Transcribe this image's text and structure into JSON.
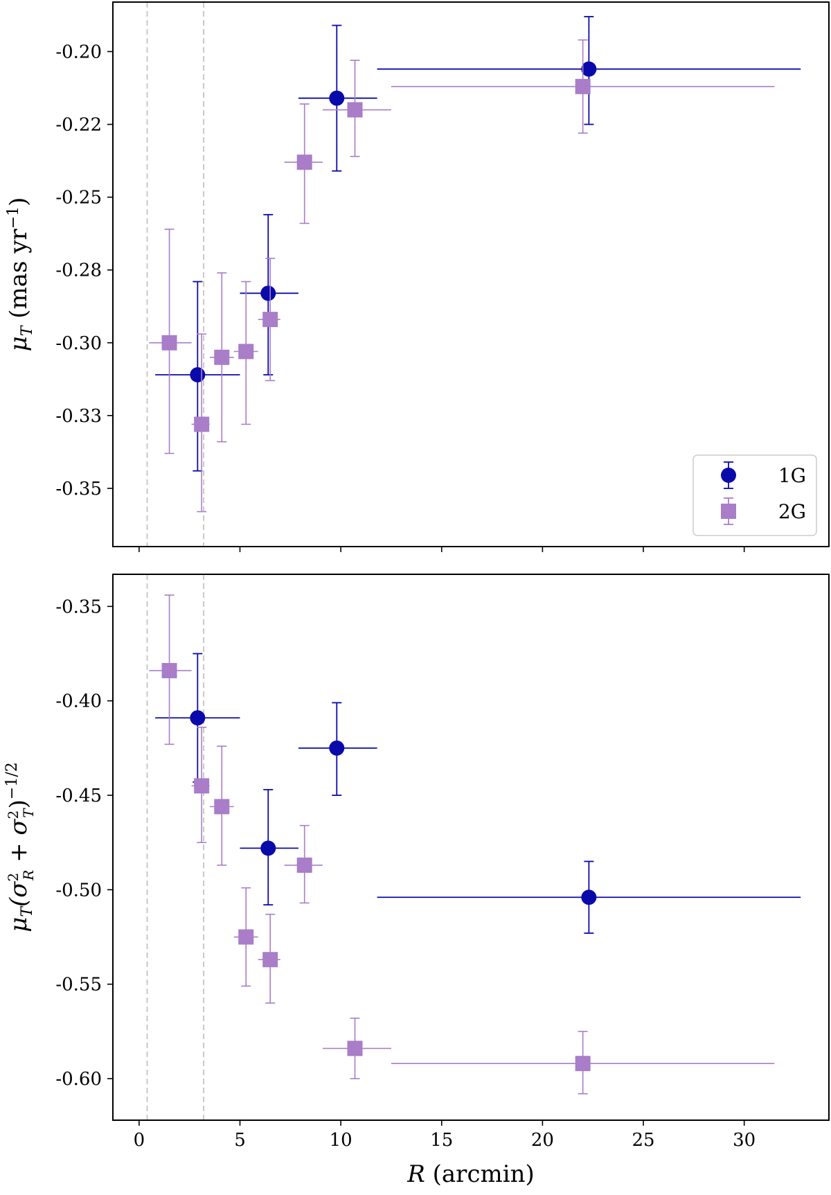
{
  "chart_data": [
    {
      "type": "scatter",
      "panel": "top",
      "ylabel": "μ_T (mas yr^-1)",
      "xlim": [
        -1.3,
        34.2
      ],
      "ylim": [
        -0.37,
        -0.183
      ],
      "yticks": [
        -0.35,
        -0.325,
        -0.3,
        -0.275,
        -0.25,
        -0.225,
        -0.2
      ],
      "ytick_labels": [
        "-0.35",
        "-0.33",
        "-0.30",
        "-0.28",
        "-0.25",
        "-0.22",
        "-0.20"
      ],
      "xticks": [
        0,
        5,
        10,
        15,
        20,
        25,
        30
      ],
      "show_xtick_labels": false,
      "vlines": [
        0.4,
        3.2
      ],
      "legend": {
        "position": "lower-right",
        "entries": [
          "1G",
          "2G"
        ]
      },
      "series": [
        {
          "name": "1G",
          "color": "#0a0aaa",
          "marker": "circle",
          "points": [
            {
              "x": 2.9,
              "y": -0.311,
              "xlo": 0.8,
              "xhi": 5.0,
              "ylo": -0.344,
              "yhi": -0.279
            },
            {
              "x": 6.4,
              "y": -0.283,
              "xlo": 5.0,
              "xhi": 7.9,
              "ylo": -0.311,
              "yhi": -0.256
            },
            {
              "x": 9.8,
              "y": -0.216,
              "xlo": 7.9,
              "xhi": 11.8,
              "ylo": -0.241,
              "yhi": -0.191
            },
            {
              "x": 22.3,
              "y": -0.206,
              "xlo": 11.8,
              "xhi": 32.8,
              "ylo": -0.225,
              "yhi": -0.188
            }
          ]
        },
        {
          "name": "2G",
          "color": "#a97dc8",
          "marker": "square",
          "points": [
            {
              "x": 1.5,
              "y": -0.3,
              "xlo": 0.5,
              "xhi": 2.6,
              "ylo": -0.338,
              "yhi": -0.261
            },
            {
              "x": 3.1,
              "y": -0.328,
              "xlo": 2.6,
              "xhi": 3.5,
              "ylo": -0.358,
              "yhi": -0.297
            },
            {
              "x": 4.1,
              "y": -0.305,
              "xlo": 3.5,
              "xhi": 4.7,
              "ylo": -0.334,
              "yhi": -0.276
            },
            {
              "x": 5.3,
              "y": -0.303,
              "xlo": 4.7,
              "xhi": 5.9,
              "ylo": -0.328,
              "yhi": -0.279
            },
            {
              "x": 6.5,
              "y": -0.292,
              "xlo": 5.9,
              "xhi": 7.0,
              "ylo": -0.313,
              "yhi": -0.271
            },
            {
              "x": 8.2,
              "y": -0.238,
              "xlo": 7.2,
              "xhi": 9.1,
              "ylo": -0.259,
              "yhi": -0.218
            },
            {
              "x": 10.7,
              "y": -0.22,
              "xlo": 9.1,
              "xhi": 12.5,
              "ylo": -0.236,
              "yhi": -0.203
            },
            {
              "x": 22.0,
              "y": -0.212,
              "xlo": 12.5,
              "xhi": 31.5,
              "ylo": -0.228,
              "yhi": -0.196
            }
          ]
        }
      ]
    },
    {
      "type": "scatter",
      "panel": "bottom",
      "ylabel": "μ_T(σ_R^2 + σ_T^2)^-1/2",
      "xlabel": "R (arcmin)",
      "xlim": [
        -1.3,
        34.2
      ],
      "ylim": [
        -0.622,
        -0.333
      ],
      "yticks": [
        -0.6,
        -0.55,
        -0.5,
        -0.45,
        -0.4,
        -0.35
      ],
      "ytick_labels": [
        "-0.60",
        "-0.55",
        "-0.50",
        "-0.45",
        "-0.40",
        "-0.35"
      ],
      "xticks": [
        0,
        5,
        10,
        15,
        20,
        25,
        30
      ],
      "xtick_labels": [
        "0",
        "5",
        "10",
        "15",
        "20",
        "25",
        "30"
      ],
      "show_xtick_labels": true,
      "vlines": [
        0.4,
        3.2
      ],
      "series": [
        {
          "name": "1G",
          "color": "#0a0aaa",
          "marker": "circle",
          "points": [
            {
              "x": 2.9,
              "y": -0.409,
              "xlo": 0.8,
              "xhi": 5.0,
              "ylo": -0.443,
              "yhi": -0.375
            },
            {
              "x": 6.4,
              "y": -0.478,
              "xlo": 5.0,
              "xhi": 7.9,
              "ylo": -0.508,
              "yhi": -0.447
            },
            {
              "x": 9.8,
              "y": -0.425,
              "xlo": 7.9,
              "xhi": 11.8,
              "ylo": -0.45,
              "yhi": -0.401
            },
            {
              "x": 22.3,
              "y": -0.504,
              "xlo": 11.8,
              "xhi": 32.8,
              "ylo": -0.523,
              "yhi": -0.485
            }
          ]
        },
        {
          "name": "2G",
          "color": "#a97dc8",
          "marker": "square",
          "points": [
            {
              "x": 1.5,
              "y": -0.384,
              "xlo": 0.5,
              "xhi": 2.6,
              "ylo": -0.423,
              "yhi": -0.344
            },
            {
              "x": 3.1,
              "y": -0.445,
              "xlo": 2.6,
              "xhi": 3.5,
              "ylo": -0.475,
              "yhi": -0.414
            },
            {
              "x": 4.1,
              "y": -0.456,
              "xlo": 3.5,
              "xhi": 4.7,
              "ylo": -0.487,
              "yhi": -0.424
            },
            {
              "x": 5.3,
              "y": -0.525,
              "xlo": 4.7,
              "xhi": 5.9,
              "ylo": -0.551,
              "yhi": -0.499
            },
            {
              "x": 6.5,
              "y": -0.537,
              "xlo": 5.9,
              "xhi": 7.0,
              "ylo": -0.56,
              "yhi": -0.513
            },
            {
              "x": 8.2,
              "y": -0.487,
              "xlo": 7.2,
              "xhi": 9.1,
              "ylo": -0.507,
              "yhi": -0.466
            },
            {
              "x": 10.7,
              "y": -0.584,
              "xlo": 9.1,
              "xhi": 12.5,
              "ylo": -0.6,
              "yhi": -0.568
            },
            {
              "x": 22.0,
              "y": -0.592,
              "xlo": 12.5,
              "xhi": 31.5,
              "ylo": -0.608,
              "yhi": -0.575
            }
          ]
        }
      ]
    }
  ]
}
